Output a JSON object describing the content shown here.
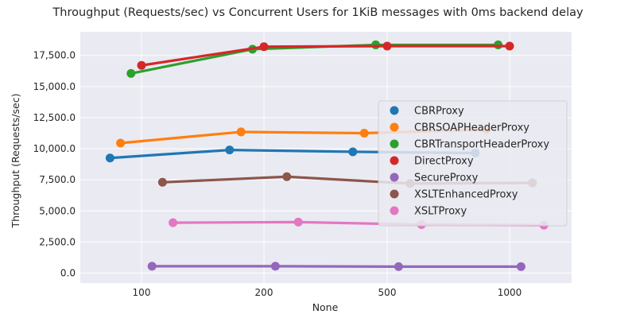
{
  "chart_data": {
    "type": "line",
    "title": "Throughput (Requests/sec) vs Concurrent Users for 1KiB messages with 0ms backend delay",
    "xlabel": "None",
    "ylabel": "Throughput (Requests/sec)",
    "categories": [
      "100",
      "200",
      "500",
      "1000"
    ],
    "ylim": [
      -800,
      19400
    ],
    "yticks": [
      0,
      2500,
      5000,
      7500,
      10000,
      12500,
      15000,
      17500
    ],
    "ytick_labels": [
      "0.0",
      "2,500.0",
      "5,000.0",
      "7,500.0",
      "10,000.0",
      "12,500.0",
      "15,000.0",
      "17,500.0"
    ],
    "grid": true,
    "legend_position": "right",
    "series": [
      {
        "name": "CBRProxy",
        "color": "#1f77b4",
        "values": [
          9250,
          9900,
          9750,
          9650
        ]
      },
      {
        "name": "CBRSOAPHeaderProxy",
        "color": "#ff7f0e",
        "values": [
          10450,
          11350,
          11250,
          11550
        ]
      },
      {
        "name": "CBRTransportHeaderProxy",
        "color": "#2ca02c",
        "values": [
          16050,
          18000,
          18350,
          18350
        ]
      },
      {
        "name": "DirectProxy",
        "color": "#d62728",
        "values": [
          16700,
          18200,
          18250,
          18250
        ]
      },
      {
        "name": "SecureProxy",
        "color": "#9467bd",
        "values": [
          550,
          550,
          520,
          520
        ]
      },
      {
        "name": "XSLTEnhancedProxy",
        "color": "#8c564b",
        "values": [
          7300,
          7750,
          7200,
          7250
        ]
      },
      {
        "name": "XSLTProxy",
        "color": "#e377c2",
        "values": [
          4050,
          4100,
          3900,
          3850
        ]
      }
    ]
  }
}
